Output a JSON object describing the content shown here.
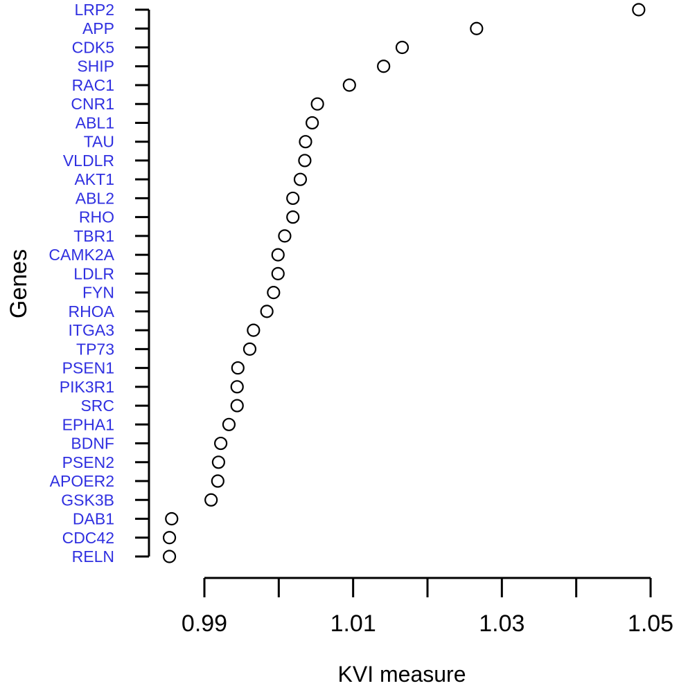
{
  "chart_data": {
    "type": "scatter",
    "title": "",
    "xlabel": "KVI measure",
    "ylabel": "Genes",
    "xlim": [
      0.9875,
      1.052
    ],
    "xticks": [
      0.99,
      1.0,
      1.01,
      1.02,
      1.03,
      1.04,
      1.05
    ],
    "xtick_labels": [
      "0.99",
      "",
      "1.01",
      "",
      "1.03",
      "",
      "1.05"
    ],
    "grid": false,
    "legend": "none",
    "marker": "open-circle",
    "label_color": "#2f2fe0",
    "categories": [
      "LRP2",
      "APP",
      "CDK5",
      "SHIP",
      "RAC1",
      "CNR1",
      "ABL1",
      "TAU",
      "VLDLR",
      "AKT1",
      "ABL2",
      "RHO",
      "TBR1",
      "CAMK2A",
      "LDLR",
      "FYN",
      "RHOA",
      "ITGA3",
      "TP73",
      "PSEN1",
      "PIK3R1",
      "SRC",
      "EPHA1",
      "BDNF",
      "PSEN2",
      "APOER2",
      "GSK3B",
      "DAB1",
      "CDC42",
      "RELN"
    ],
    "values": [
      1.0484,
      1.0266,
      1.0166,
      1.0141,
      1.0095,
      1.0052,
      1.0045,
      1.0036,
      1.0035,
      1.0029,
      1.0019,
      1.0019,
      1.0008,
      0.9999,
      0.9999,
      0.9993,
      0.9984,
      0.9966,
      0.9961,
      0.9945,
      0.9944,
      0.9944,
      0.9933,
      0.9922,
      0.9919,
      0.9918,
      0.9909,
      0.9856,
      0.9853,
      0.9853
    ]
  }
}
